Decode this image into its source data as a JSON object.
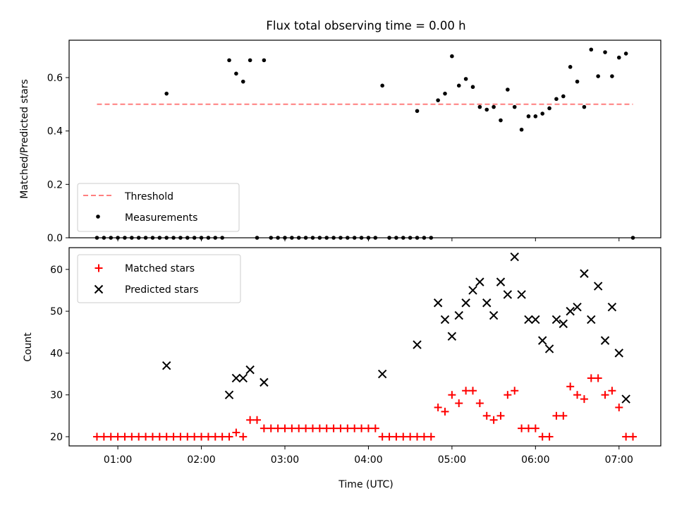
{
  "figure_title": "Flux total observing time = 0.00 h",
  "colors": {
    "threshold": "#ff7f7f",
    "measurements": "#000000",
    "matched": "#ff0000",
    "predicted": "#000000",
    "axes": "#000000"
  },
  "chart_data": [
    {
      "type": "scatter",
      "title": "Flux total observing time = 0.00 h",
      "xlabel": "",
      "ylabel": "Matched/Predicted stars",
      "xlim": [
        "00:25",
        "07:30"
      ],
      "ylim": [
        0,
        0.74
      ],
      "yticks": [
        0.0,
        0.2,
        0.4,
        0.6
      ],
      "ytick_labels": [
        "0.0",
        "0.2",
        "0.4",
        "0.6"
      ],
      "xticks": [
        "01:00",
        "02:00",
        "03:00",
        "04:00",
        "05:00",
        "06:00",
        "07:00"
      ],
      "grid": false,
      "legend_position": "lower left",
      "threshold": {
        "name": "Threshold",
        "style": "dashed",
        "value": 0.5,
        "x_range": [
          "00:45",
          "07:10"
        ]
      },
      "series": [
        {
          "name": "Measurements",
          "marker": "dot",
          "points": [
            [
              "00:45",
              0.0
            ],
            [
              "00:50",
              0.0
            ],
            [
              "00:55",
              0.0
            ],
            [
              "01:00",
              0.0
            ],
            [
              "01:05",
              0.0
            ],
            [
              "01:10",
              0.0
            ],
            [
              "01:15",
              0.0
            ],
            [
              "01:20",
              0.0
            ],
            [
              "01:25",
              0.0
            ],
            [
              "01:30",
              0.0
            ],
            [
              "01:35",
              0.0
            ],
            [
              "01:35",
              0.54
            ],
            [
              "01:40",
              0.0
            ],
            [
              "01:45",
              0.0
            ],
            [
              "01:50",
              0.0
            ],
            [
              "01:55",
              0.0
            ],
            [
              "02:00",
              0.0
            ],
            [
              "02:05",
              0.0
            ],
            [
              "02:10",
              0.0
            ],
            [
              "02:15",
              0.0
            ],
            [
              "02:20",
              0.665
            ],
            [
              "02:25",
              0.615
            ],
            [
              "02:30",
              0.585
            ],
            [
              "02:35",
              0.665
            ],
            [
              "02:40",
              0.0
            ],
            [
              "02:45",
              0.665
            ],
            [
              "02:50",
              0.0
            ],
            [
              "02:55",
              0.0
            ],
            [
              "03:00",
              0.0
            ],
            [
              "03:05",
              0.0
            ],
            [
              "03:10",
              0.0
            ],
            [
              "03:15",
              0.0
            ],
            [
              "03:20",
              0.0
            ],
            [
              "03:25",
              0.0
            ],
            [
              "03:30",
              0.0
            ],
            [
              "03:35",
              0.0
            ],
            [
              "03:40",
              0.0
            ],
            [
              "03:45",
              0.0
            ],
            [
              "03:50",
              0.0
            ],
            [
              "03:55",
              0.0
            ],
            [
              "04:00",
              0.0
            ],
            [
              "04:05",
              0.0
            ],
            [
              "04:10",
              0.57
            ],
            [
              "04:15",
              0.0
            ],
            [
              "04:20",
              0.0
            ],
            [
              "04:25",
              0.0
            ],
            [
              "04:30",
              0.0
            ],
            [
              "04:35",
              0.0
            ],
            [
              "04:35",
              0.475
            ],
            [
              "04:40",
              0.0
            ],
            [
              "04:45",
              0.0
            ],
            [
              "04:50",
              0.515
            ],
            [
              "04:55",
              0.54
            ],
            [
              "05:00",
              0.68
            ],
            [
              "05:05",
              0.57
            ],
            [
              "05:10",
              0.595
            ],
            [
              "05:15",
              0.565
            ],
            [
              "05:20",
              0.49
            ],
            [
              "05:25",
              0.48
            ],
            [
              "05:30",
              0.49
            ],
            [
              "05:35",
              0.44
            ],
            [
              "05:40",
              0.555
            ],
            [
              "05:45",
              0.49
            ],
            [
              "05:50",
              0.405
            ],
            [
              "05:55",
              0.455
            ],
            [
              "06:00",
              0.455
            ],
            [
              "06:05",
              0.465
            ],
            [
              "06:10",
              0.485
            ],
            [
              "06:15",
              0.52
            ],
            [
              "06:20",
              0.53
            ],
            [
              "06:25",
              0.64
            ],
            [
              "06:30",
              0.585
            ],
            [
              "06:35",
              0.49
            ],
            [
              "06:40",
              0.705
            ],
            [
              "06:45",
              0.605
            ],
            [
              "06:50",
              0.695
            ],
            [
              "06:55",
              0.605
            ],
            [
              "07:00",
              0.675
            ],
            [
              "07:05",
              0.69
            ],
            [
              "07:10",
              0.0
            ]
          ]
        }
      ]
    },
    {
      "type": "scatter",
      "title": "",
      "xlabel": "Time (UTC)",
      "ylabel": "Count",
      "xlim": [
        "00:25",
        "07:30"
      ],
      "ylim": [
        17.8,
        65.2
      ],
      "yticks": [
        20,
        30,
        40,
        50,
        60
      ],
      "ytick_labels": [
        "20",
        "30",
        "40",
        "50",
        "60"
      ],
      "xticks": [
        "01:00",
        "02:00",
        "03:00",
        "04:00",
        "05:00",
        "06:00",
        "07:00"
      ],
      "xtick_labels": [
        "01:00",
        "02:00",
        "03:00",
        "04:00",
        "05:00",
        "06:00",
        "07:00"
      ],
      "grid": false,
      "legend_position": "upper left",
      "series": [
        {
          "name": "Matched stars",
          "marker": "plus",
          "points": [
            [
              "00:45",
              20
            ],
            [
              "00:50",
              20
            ],
            [
              "00:55",
              20
            ],
            [
              "01:00",
              20
            ],
            [
              "01:05",
              20
            ],
            [
              "01:10",
              20
            ],
            [
              "01:15",
              20
            ],
            [
              "01:20",
              20
            ],
            [
              "01:25",
              20
            ],
            [
              "01:30",
              20
            ],
            [
              "01:35",
              20
            ],
            [
              "01:40",
              20
            ],
            [
              "01:45",
              20
            ],
            [
              "01:50",
              20
            ],
            [
              "01:55",
              20
            ],
            [
              "02:00",
              20
            ],
            [
              "02:05",
              20
            ],
            [
              "02:10",
              20
            ],
            [
              "02:15",
              20
            ],
            [
              "02:20",
              20
            ],
            [
              "02:25",
              21
            ],
            [
              "02:30",
              20
            ],
            [
              "02:35",
              24
            ],
            [
              "02:40",
              24
            ],
            [
              "02:45",
              22
            ],
            [
              "02:50",
              22
            ],
            [
              "02:55",
              22
            ],
            [
              "03:00",
              22
            ],
            [
              "03:05",
              22
            ],
            [
              "03:10",
              22
            ],
            [
              "03:15",
              22
            ],
            [
              "03:20",
              22
            ],
            [
              "03:25",
              22
            ],
            [
              "03:30",
              22
            ],
            [
              "03:35",
              22
            ],
            [
              "03:40",
              22
            ],
            [
              "03:45",
              22
            ],
            [
              "03:50",
              22
            ],
            [
              "03:55",
              22
            ],
            [
              "04:00",
              22
            ],
            [
              "04:05",
              22
            ],
            [
              "04:10",
              20
            ],
            [
              "04:15",
              20
            ],
            [
              "04:20",
              20
            ],
            [
              "04:25",
              20
            ],
            [
              "04:30",
              20
            ],
            [
              "04:35",
              20
            ],
            [
              "04:40",
              20
            ],
            [
              "04:45",
              20
            ],
            [
              "04:50",
              27
            ],
            [
              "04:55",
              26
            ],
            [
              "05:00",
              30
            ],
            [
              "05:05",
              28
            ],
            [
              "05:10",
              31
            ],
            [
              "05:15",
              31
            ],
            [
              "05:20",
              28
            ],
            [
              "05:25",
              25
            ],
            [
              "05:30",
              24
            ],
            [
              "05:35",
              25
            ],
            [
              "05:40",
              30
            ],
            [
              "05:45",
              31
            ],
            [
              "05:50",
              22
            ],
            [
              "05:55",
              22
            ],
            [
              "06:00",
              22
            ],
            [
              "06:05",
              20
            ],
            [
              "06:10",
              20
            ],
            [
              "06:15",
              25
            ],
            [
              "06:20",
              25
            ],
            [
              "06:25",
              32
            ],
            [
              "06:30",
              30
            ],
            [
              "06:35",
              29
            ],
            [
              "06:40",
              34
            ],
            [
              "06:45",
              34
            ],
            [
              "06:50",
              30
            ],
            [
              "06:55",
              31
            ],
            [
              "07:00",
              27
            ],
            [
              "07:05",
              20
            ],
            [
              "07:10",
              20
            ]
          ]
        },
        {
          "name": "Predicted stars",
          "marker": "x",
          "points": [
            [
              "01:35",
              37
            ],
            [
              "02:20",
              30
            ],
            [
              "02:25",
              34
            ],
            [
              "02:30",
              34
            ],
            [
              "02:35",
              36
            ],
            [
              "02:45",
              33
            ],
            [
              "04:10",
              35
            ],
            [
              "04:35",
              42
            ],
            [
              "04:50",
              52
            ],
            [
              "04:55",
              48
            ],
            [
              "05:00",
              44
            ],
            [
              "05:05",
              49
            ],
            [
              "05:10",
              52
            ],
            [
              "05:15",
              55
            ],
            [
              "05:20",
              57
            ],
            [
              "05:25",
              52
            ],
            [
              "05:30",
              49
            ],
            [
              "05:35",
              57
            ],
            [
              "05:40",
              54
            ],
            [
              "05:45",
              63
            ],
            [
              "05:50",
              54
            ],
            [
              "05:55",
              48
            ],
            [
              "06:00",
              48
            ],
            [
              "06:05",
              43
            ],
            [
              "06:10",
              41
            ],
            [
              "06:15",
              48
            ],
            [
              "06:20",
              47
            ],
            [
              "06:25",
              50
            ],
            [
              "06:30",
              51
            ],
            [
              "06:35",
              59
            ],
            [
              "06:40",
              48
            ],
            [
              "06:45",
              56
            ],
            [
              "06:50",
              43
            ],
            [
              "06:55",
              51
            ],
            [
              "07:00",
              40
            ],
            [
              "07:05",
              29
            ]
          ]
        }
      ]
    }
  ]
}
